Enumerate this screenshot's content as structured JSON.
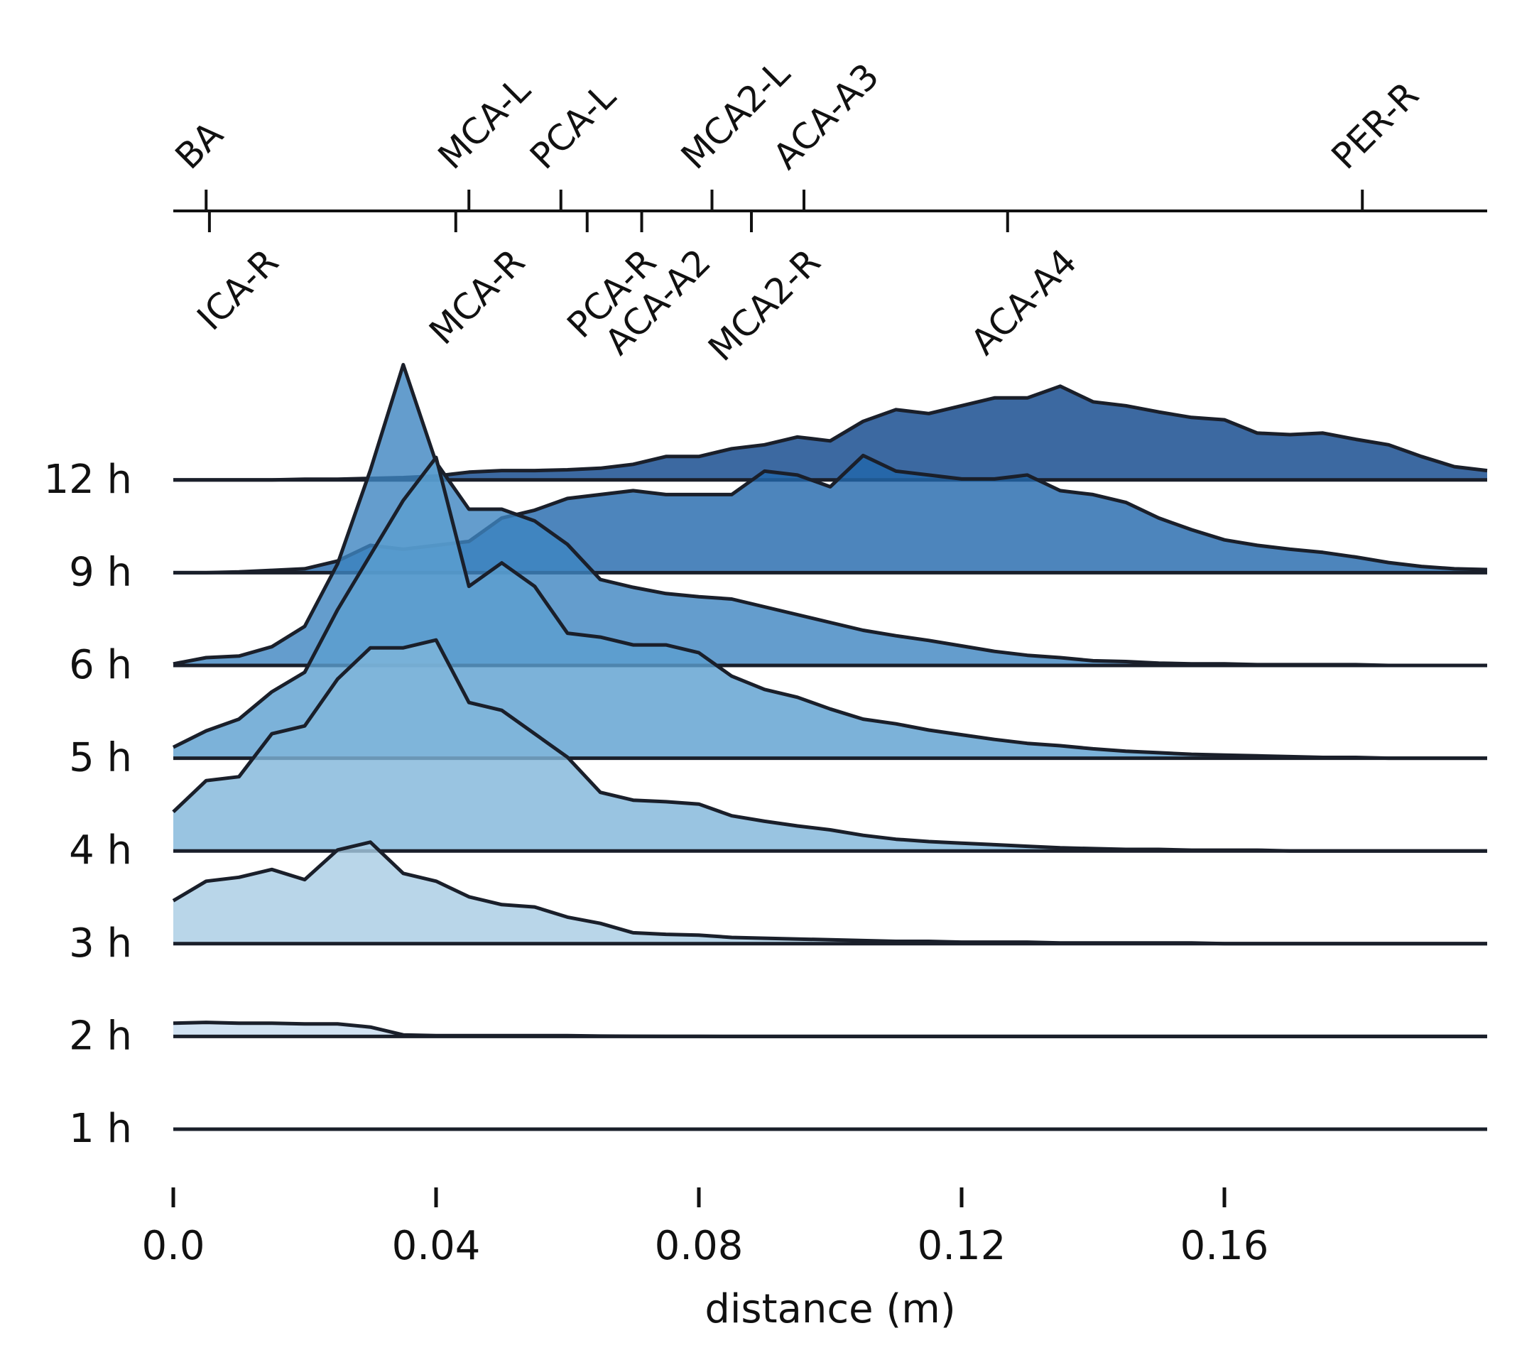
{
  "chart_data": {
    "type": "area",
    "subtype": "ridgeline",
    "title": "",
    "xlabel": "distance (m)",
    "ylabel": "",
    "xlim": [
      0.0,
      0.2
    ],
    "x_ticks": [
      0.0,
      0.04,
      0.08,
      0.12,
      0.16
    ],
    "x_tick_labels": [
      "0.0",
      "0.04",
      "0.08",
      "0.12",
      "0.16"
    ],
    "top_axis_landmarks_upper": [
      {
        "label": "BA",
        "x": 0.005
      },
      {
        "label": "MCA-L",
        "x": 0.045
      },
      {
        "label": "PCA-L",
        "x": 0.059
      },
      {
        "label": "MCA2-L",
        "x": 0.082
      },
      {
        "label": "ACA-A3",
        "x": 0.096
      },
      {
        "label": "PER-R",
        "x": 0.181
      }
    ],
    "top_axis_landmarks_lower": [
      {
        "label": "ICA-R",
        "x": 0.0055
      },
      {
        "label": "MCA-R",
        "x": 0.043
      },
      {
        "label": "PCA-R",
        "x": 0.063
      },
      {
        "label": "ACA-A2",
        "x": 0.0713
      },
      {
        "label": "MCA2-R",
        "x": 0.088
      },
      {
        "label": "ACA-A4",
        "x": 0.127
      }
    ],
    "x": [
      0.0,
      0.005,
      0.01,
      0.015,
      0.02,
      0.025,
      0.03,
      0.035,
      0.04,
      0.045,
      0.05,
      0.055,
      0.06,
      0.065,
      0.07,
      0.075,
      0.08,
      0.085,
      0.09,
      0.095,
      0.1,
      0.105,
      0.11,
      0.115,
      0.12,
      0.125,
      0.13,
      0.135,
      0.14,
      0.145,
      0.15,
      0.155,
      0.16,
      0.165,
      0.17,
      0.175,
      0.18,
      0.185,
      0.19,
      0.195,
      0.2
    ],
    "series": [
      {
        "name": "1 h",
        "color": "#f7fbff",
        "values": [
          0,
          0,
          0,
          0,
          0,
          0,
          0,
          0,
          0,
          0,
          0,
          0,
          0,
          0,
          0,
          0,
          0,
          0,
          0,
          0,
          0,
          0,
          0,
          0,
          0,
          0,
          0,
          0,
          0,
          0,
          0,
          0,
          0,
          0,
          0,
          0,
          0,
          0,
          0,
          0,
          0
        ]
      },
      {
        "name": "2 h",
        "color": "#c6dbef",
        "values": [
          0.17,
          0.18,
          0.17,
          0.17,
          0.16,
          0.16,
          0.12,
          0.02,
          0.01,
          0.01,
          0.01,
          0.01,
          0.01,
          0.005,
          0.003,
          0.002,
          0.001,
          0,
          0,
          0,
          0,
          0,
          0,
          0,
          0,
          0,
          0,
          0,
          0,
          0,
          0,
          0,
          0,
          0,
          0,
          0,
          0,
          0,
          0,
          0,
          0
        ]
      },
      {
        "name": "3 h",
        "color": "#a8cce4",
        "values": [
          0.55,
          0.8,
          0.85,
          0.95,
          0.82,
          1.2,
          1.3,
          0.9,
          0.8,
          0.6,
          0.5,
          0.47,
          0.34,
          0.26,
          0.14,
          0.12,
          0.11,
          0.08,
          0.07,
          0.06,
          0.05,
          0.04,
          0.03,
          0.03,
          0.02,
          0.02,
          0.02,
          0.01,
          0.01,
          0.01,
          0.01,
          0.01,
          0,
          0,
          0,
          0,
          0,
          0,
          0,
          0,
          0
        ]
      },
      {
        "name": "4 h",
        "color": "#7fb5da",
        "values": [
          0.5,
          0.9,
          0.95,
          1.5,
          1.6,
          2.2,
          2.6,
          2.6,
          2.7,
          1.9,
          1.8,
          1.5,
          1.2,
          0.75,
          0.65,
          0.63,
          0.6,
          0.45,
          0.38,
          0.32,
          0.27,
          0.2,
          0.15,
          0.12,
          0.1,
          0.08,
          0.06,
          0.04,
          0.03,
          0.02,
          0.02,
          0.01,
          0.01,
          0.01,
          0,
          0,
          0,
          0,
          0,
          0,
          0
        ]
      },
      {
        "name": "5 h",
        "color": "#5b9fcf",
        "values": [
          0.14,
          0.35,
          0.5,
          0.85,
          1.1,
          1.9,
          2.6,
          3.3,
          3.85,
          2.2,
          2.5,
          2.2,
          1.6,
          1.55,
          1.45,
          1.45,
          1.35,
          1.05,
          0.88,
          0.78,
          0.63,
          0.5,
          0.44,
          0.36,
          0.3,
          0.24,
          0.19,
          0.16,
          0.12,
          0.09,
          0.07,
          0.05,
          0.04,
          0.03,
          0.02,
          0.01,
          0.01,
          0,
          0,
          0,
          0
        ]
      },
      {
        "name": "6 h",
        "color": "#3d85c1",
        "values": [
          0.02,
          0.1,
          0.12,
          0.24,
          0.5,
          1.3,
          2.5,
          3.85,
          2.6,
          2.0,
          2.0,
          1.85,
          1.55,
          1.1,
          1.0,
          0.92,
          0.88,
          0.85,
          0.75,
          0.65,
          0.55,
          0.45,
          0.38,
          0.32,
          0.25,
          0.18,
          0.13,
          0.1,
          0.06,
          0.05,
          0.03,
          0.02,
          0.02,
          0.01,
          0.01,
          0.01,
          0.01,
          0,
          0,
          0,
          0
        ]
      },
      {
        "name": "9 h",
        "color": "#2167ab",
        "values": [
          0,
          0,
          0.01,
          0.03,
          0.05,
          0.15,
          0.35,
          0.3,
          0.35,
          0.4,
          0.7,
          0.8,
          0.95,
          1.0,
          1.05,
          1.0,
          1.0,
          1.0,
          1.3,
          1.25,
          1.1,
          1.5,
          1.3,
          1.25,
          1.2,
          1.2,
          1.25,
          1.05,
          1.0,
          0.9,
          0.7,
          0.55,
          0.42,
          0.35,
          0.3,
          0.26,
          0.2,
          0.13,
          0.08,
          0.05,
          0.04
        ]
      },
      {
        "name": "12 h",
        "color": "#0b4389",
        "values": [
          0,
          0,
          0,
          0,
          0.01,
          0.01,
          0.02,
          0.03,
          0.05,
          0.1,
          0.12,
          0.12,
          0.13,
          0.15,
          0.2,
          0.3,
          0.3,
          0.4,
          0.45,
          0.55,
          0.5,
          0.75,
          0.9,
          0.85,
          0.95,
          1.05,
          1.05,
          1.2,
          1.0,
          0.95,
          0.87,
          0.8,
          0.77,
          0.6,
          0.58,
          0.6,
          0.52,
          0.45,
          0.3,
          0.17,
          0.12
        ]
      }
    ],
    "y_tick_labels": [
      "1 h",
      "2 h",
      "3 h",
      "4 h",
      "5 h",
      "6 h",
      "9 h",
      "12 h"
    ],
    "grid": false,
    "legend": "none",
    "line_color": "#1a1f2a"
  }
}
